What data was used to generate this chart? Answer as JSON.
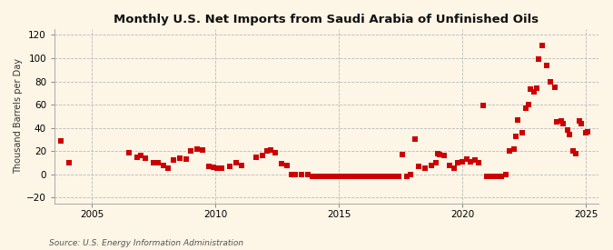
{
  "title": "Monthly U.S. Net Imports from Saudi Arabia of Unfinished Oils",
  "ylabel": "Thousand Barrels per Day",
  "source": "Source: U.S. Energy Information Administration",
  "xlim": [
    2003.5,
    2025.5
  ],
  "ylim": [
    -25,
    125
  ],
  "yticks": [
    -20,
    0,
    20,
    40,
    60,
    80,
    100,
    120
  ],
  "xticks": [
    2005,
    2010,
    2015,
    2020,
    2025
  ],
  "background_color": "#fdf5e6",
  "grid_color": "#bbbbbb",
  "marker_color": "#cc0000",
  "marker_size": 18,
  "data_points": [
    [
      2003.75,
      29
    ],
    [
      2004.08,
      10
    ],
    [
      2006.5,
      19
    ],
    [
      2006.83,
      15
    ],
    [
      2007.0,
      16
    ],
    [
      2007.17,
      14
    ],
    [
      2007.5,
      10
    ],
    [
      2007.67,
      10
    ],
    [
      2007.92,
      8
    ],
    [
      2008.08,
      5
    ],
    [
      2008.33,
      12
    ],
    [
      2008.58,
      14
    ],
    [
      2008.83,
      13
    ],
    [
      2009.0,
      20
    ],
    [
      2009.25,
      22
    ],
    [
      2009.5,
      21
    ],
    [
      2009.75,
      7
    ],
    [
      2009.92,
      6
    ],
    [
      2010.08,
      5
    ],
    [
      2010.25,
      5
    ],
    [
      2010.58,
      7
    ],
    [
      2010.83,
      10
    ],
    [
      2011.08,
      8
    ],
    [
      2011.67,
      15
    ],
    [
      2011.92,
      16
    ],
    [
      2012.08,
      20
    ],
    [
      2012.25,
      21
    ],
    [
      2012.42,
      19
    ],
    [
      2012.67,
      9
    ],
    [
      2012.92,
      8
    ],
    [
      2013.08,
      0
    ],
    [
      2013.25,
      0
    ],
    [
      2013.5,
      0
    ],
    [
      2013.75,
      0
    ],
    [
      2013.92,
      -2
    ],
    [
      2014.08,
      -2
    ],
    [
      2014.25,
      -2
    ],
    [
      2014.42,
      -2
    ],
    [
      2014.58,
      -2
    ],
    [
      2014.75,
      -2
    ],
    [
      2014.92,
      -2
    ],
    [
      2015.0,
      -2
    ],
    [
      2015.08,
      -2
    ],
    [
      2015.25,
      -2
    ],
    [
      2015.42,
      -2
    ],
    [
      2015.58,
      -2
    ],
    [
      2015.75,
      -2
    ],
    [
      2015.92,
      -2
    ],
    [
      2016.0,
      -2
    ],
    [
      2016.08,
      -2
    ],
    [
      2016.25,
      -2
    ],
    [
      2016.42,
      -2
    ],
    [
      2016.58,
      -2
    ],
    [
      2016.75,
      -2
    ],
    [
      2016.92,
      -2
    ],
    [
      2017.0,
      -2
    ],
    [
      2017.08,
      -2
    ],
    [
      2017.25,
      -2
    ],
    [
      2017.42,
      -2
    ],
    [
      2017.58,
      17
    ],
    [
      2017.75,
      -2
    ],
    [
      2017.92,
      0
    ],
    [
      2018.08,
      30
    ],
    [
      2018.25,
      7
    ],
    [
      2018.5,
      5
    ],
    [
      2018.75,
      8
    ],
    [
      2018.92,
      10
    ],
    [
      2019.0,
      18
    ],
    [
      2019.08,
      17
    ],
    [
      2019.25,
      16
    ],
    [
      2019.5,
      8
    ],
    [
      2019.67,
      5
    ],
    [
      2019.83,
      10
    ],
    [
      2020.0,
      11
    ],
    [
      2020.17,
      13
    ],
    [
      2020.33,
      11
    ],
    [
      2020.5,
      12
    ],
    [
      2020.67,
      10
    ],
    [
      2020.83,
      59
    ],
    [
      2021.0,
      -2
    ],
    [
      2021.08,
      -2
    ],
    [
      2021.25,
      -2
    ],
    [
      2021.42,
      -2
    ],
    [
      2021.58,
      -2
    ],
    [
      2021.75,
      0
    ],
    [
      2021.92,
      20
    ],
    [
      2022.08,
      22
    ],
    [
      2022.17,
      33
    ],
    [
      2022.25,
      47
    ],
    [
      2022.42,
      36
    ],
    [
      2022.58,
      57
    ],
    [
      2022.67,
      60
    ],
    [
      2022.75,
      73
    ],
    [
      2022.92,
      71
    ],
    [
      2023.0,
      74
    ],
    [
      2023.08,
      99
    ],
    [
      2023.25,
      111
    ],
    [
      2023.42,
      94
    ],
    [
      2023.58,
      80
    ],
    [
      2023.75,
      75
    ],
    [
      2023.83,
      45
    ],
    [
      2024.0,
      46
    ],
    [
      2024.08,
      44
    ],
    [
      2024.25,
      38
    ],
    [
      2024.33,
      34
    ],
    [
      2024.5,
      20
    ],
    [
      2024.58,
      18
    ],
    [
      2024.75,
      46
    ],
    [
      2024.83,
      44
    ],
    [
      2025.0,
      36
    ],
    [
      2025.08,
      37
    ]
  ]
}
